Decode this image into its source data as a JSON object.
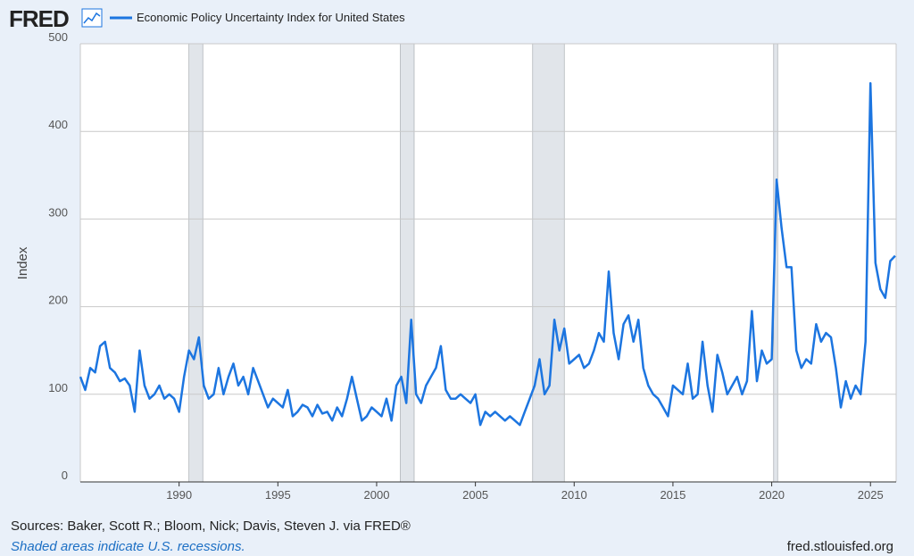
{
  "chart_data": {
    "type": "line",
    "logo": "FRED",
    "title": "Economic Policy Uncertainty Index for United States",
    "ylabel": "Index",
    "source": "Sources: Baker, Scott R.; Bloom, Nick; Davis, Steven J. via FRED®",
    "note": "Shaded areas indicate U.S. recessions.",
    "url": "fred.stlouisfed.org",
    "xlim": [
      1985,
      2026.3
    ],
    "ylim": [
      0,
      500
    ],
    "xticks": [
      1990,
      1995,
      2000,
      2005,
      2010,
      2015,
      2020,
      2025
    ],
    "yticks": [
      0,
      100,
      200,
      300,
      400,
      500
    ],
    "grid": true,
    "recessions": [
      [
        1990.5,
        1991.2
      ],
      [
        2001.2,
        2001.9
      ],
      [
        2007.9,
        2009.5
      ],
      [
        2020.1,
        2020.3
      ]
    ],
    "x": [
      1985,
      1985.25,
      1985.5,
      1985.75,
      1986,
      1986.25,
      1986.5,
      1986.75,
      1987,
      1987.25,
      1987.5,
      1987.75,
      1988,
      1988.25,
      1988.5,
      1988.75,
      1989,
      1989.25,
      1989.5,
      1989.75,
      1990,
      1990.25,
      1990.5,
      1990.75,
      1991,
      1991.25,
      1991.5,
      1991.75,
      1992,
      1992.25,
      1992.5,
      1992.75,
      1993,
      1993.25,
      1993.5,
      1993.75,
      1994,
      1994.25,
      1994.5,
      1994.75,
      1995,
      1995.25,
      1995.5,
      1995.75,
      1996,
      1996.25,
      1996.5,
      1996.75,
      1997,
      1997.25,
      1997.5,
      1997.75,
      1998,
      1998.25,
      1998.5,
      1998.75,
      1999,
      1999.25,
      1999.5,
      1999.75,
      2000,
      2000.25,
      2000.5,
      2000.75,
      2001,
      2001.25,
      2001.5,
      2001.75,
      2002,
      2002.25,
      2002.5,
      2002.75,
      2003,
      2003.25,
      2003.5,
      2003.75,
      2004,
      2004.25,
      2004.5,
      2004.75,
      2005,
      2005.25,
      2005.5,
      2005.75,
      2006,
      2006.25,
      2006.5,
      2006.75,
      2007,
      2007.25,
      2007.5,
      2007.75,
      2008,
      2008.25,
      2008.5,
      2008.75,
      2009,
      2009.25,
      2009.5,
      2009.75,
      2010,
      2010.25,
      2010.5,
      2010.75,
      2011,
      2011.25,
      2011.5,
      2011.75,
      2012,
      2012.25,
      2012.5,
      2012.75,
      2013,
      2013.25,
      2013.5,
      2013.75,
      2014,
      2014.25,
      2014.5,
      2014.75,
      2015,
      2015.25,
      2015.5,
      2015.75,
      2016,
      2016.25,
      2016.5,
      2016.75,
      2017,
      2017.25,
      2017.5,
      2017.75,
      2018,
      2018.25,
      2018.5,
      2018.75,
      2019,
      2019.25,
      2019.5,
      2019.75,
      2020,
      2020.25,
      2020.5,
      2020.75,
      2021,
      2021.25,
      2021.5,
      2021.75,
      2022,
      2022.25,
      2022.5,
      2022.75,
      2023,
      2023.25,
      2023.5,
      2023.75,
      2024,
      2024.25,
      2024.5,
      2024.75,
      2025,
      2025.25,
      2025.5,
      2025.75,
      2026,
      2026.25
    ],
    "series": [
      {
        "name": "Economic Policy Uncertainty Index for United States",
        "color": "#1c75e0",
        "values": [
          120,
          105,
          130,
          125,
          155,
          160,
          130,
          125,
          115,
          118,
          110,
          80,
          150,
          110,
          95,
          100,
          110,
          95,
          100,
          95,
          80,
          120,
          150,
          140,
          165,
          110,
          95,
          100,
          130,
          100,
          120,
          135,
          110,
          120,
          100,
          130,
          115,
          100,
          85,
          95,
          90,
          85,
          105,
          75,
          80,
          88,
          85,
          75,
          88,
          78,
          80,
          70,
          85,
          75,
          95,
          120,
          95,
          70,
          75,
          85,
          80,
          75,
          95,
          70,
          110,
          120,
          90,
          185,
          100,
          90,
          110,
          120,
          130,
          155,
          105,
          95,
          95,
          100,
          95,
          90,
          100,
          65,
          80,
          75,
          80,
          75,
          70,
          75,
          70,
          65,
          80,
          95,
          110,
          140,
          100,
          110,
          185,
          150,
          175,
          135,
          140,
          145,
          130,
          135,
          150,
          170,
          160,
          240,
          170,
          140,
          180,
          190,
          160,
          185,
          130,
          110,
          100,
          95,
          85,
          75,
          110,
          105,
          100,
          135,
          95,
          100,
          160,
          110,
          80,
          145,
          125,
          100,
          110,
          120,
          100,
          115,
          195,
          115,
          150,
          135,
          140,
          345,
          290,
          245,
          245,
          150,
          130,
          140,
          135,
          180,
          160,
          170,
          165,
          130,
          85,
          115,
          95,
          110,
          100,
          160,
          455,
          250,
          220,
          210,
          252,
          258
        ]
      }
    ]
  }
}
